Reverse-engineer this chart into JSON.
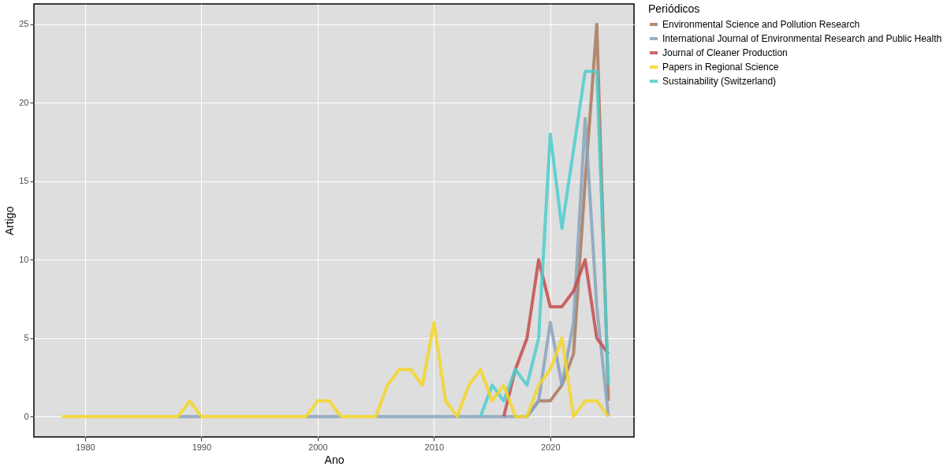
{
  "chart_data": {
    "type": "line",
    "xlabel": "Ano",
    "ylabel": "Artigo",
    "legend_title": "Periódicos",
    "x": [
      1978,
      1979,
      1980,
      1981,
      1982,
      1983,
      1984,
      1985,
      1986,
      1987,
      1988,
      1989,
      1990,
      1991,
      1992,
      1993,
      1994,
      1995,
      1996,
      1997,
      1998,
      1999,
      2000,
      2001,
      2002,
      2003,
      2004,
      2005,
      2006,
      2007,
      2008,
      2009,
      2010,
      2011,
      2012,
      2013,
      2014,
      2015,
      2016,
      2017,
      2018,
      2019,
      2020,
      2021,
      2022,
      2023,
      2024,
      2025
    ],
    "series": [
      {
        "name": "Environmental Science and Pollution Research",
        "color": "#a97a5d",
        "values": [
          null,
          null,
          null,
          null,
          null,
          null,
          null,
          null,
          null,
          null,
          null,
          null,
          null,
          null,
          null,
          null,
          null,
          null,
          null,
          null,
          null,
          null,
          null,
          null,
          null,
          null,
          null,
          null,
          null,
          null,
          null,
          null,
          null,
          null,
          null,
          null,
          null,
          null,
          null,
          null,
          0,
          1,
          1,
          2,
          4,
          15,
          25,
          1
        ]
      },
      {
        "name": "International Journal of Environmental Research and Public Health",
        "color": "#8aa3bd",
        "values": [
          null,
          null,
          null,
          null,
          null,
          null,
          null,
          null,
          null,
          null,
          0,
          0,
          0,
          null,
          null,
          null,
          null,
          null,
          null,
          null,
          null,
          0,
          0,
          0,
          0,
          null,
          null,
          0,
          0,
          0,
          0,
          0,
          0,
          0,
          0,
          0,
          0,
          0,
          0,
          0,
          0,
          1,
          6,
          2,
          6,
          19,
          7,
          0
        ]
      },
      {
        "name": "Journal of Cleaner Production",
        "color": "#c44e4e",
        "values": [
          null,
          null,
          null,
          null,
          null,
          null,
          null,
          null,
          null,
          null,
          null,
          null,
          null,
          null,
          null,
          null,
          null,
          null,
          null,
          null,
          null,
          null,
          null,
          null,
          null,
          null,
          null,
          null,
          null,
          null,
          null,
          null,
          null,
          null,
          null,
          null,
          null,
          null,
          0,
          3,
          5,
          10,
          7,
          7,
          8,
          10,
          5,
          4
        ]
      },
      {
        "name": "Sustainability (Switzerland)",
        "color": "#4ecece",
        "values": [
          null,
          null,
          null,
          null,
          null,
          null,
          null,
          null,
          null,
          null,
          null,
          null,
          null,
          null,
          null,
          null,
          null,
          null,
          null,
          null,
          null,
          null,
          null,
          null,
          null,
          null,
          null,
          null,
          null,
          null,
          null,
          null,
          null,
          null,
          null,
          null,
          0,
          2,
          1,
          3,
          2,
          5,
          18,
          12,
          17,
          22,
          22,
          2
        ]
      },
      {
        "name": "Papers in Regional Science",
        "color": "#f6d626",
        "values": [
          0,
          0,
          0,
          0,
          0,
          0,
          0,
          0,
          0,
          0,
          0,
          1,
          0,
          0,
          0,
          0,
          0,
          0,
          0,
          0,
          0,
          0,
          1,
          1,
          0,
          0,
          0,
          0,
          2,
          3,
          3,
          2,
          6,
          1,
          0,
          2,
          3,
          1,
          2,
          0,
          0,
          2,
          3,
          5,
          0,
          1,
          1,
          0
        ]
      }
    ],
    "xlim": [
      1975.6,
      2027.2
    ],
    "xticks": [
      1980,
      1990,
      2000,
      2010,
      2020
    ],
    "ylim": [
      -1.3,
      26.3
    ],
    "yticks": [
      0,
      5,
      10,
      15,
      20,
      25
    ],
    "grid": true,
    "legend": "right",
    "marker": "none",
    "line_style": "solid"
  }
}
